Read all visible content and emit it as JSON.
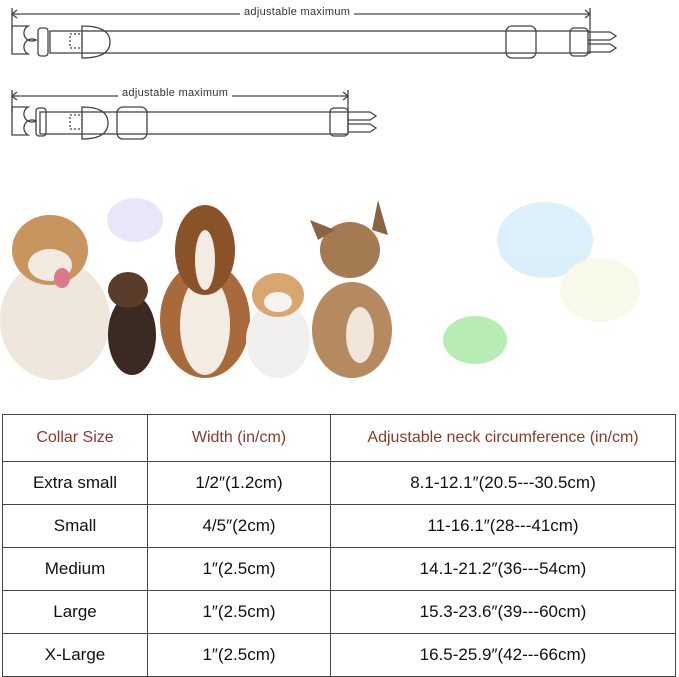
{
  "diagram": {
    "long_collar_label": "adjustable maximum",
    "short_collar_label": "adjustable maximum"
  },
  "colors": {
    "header_text": "#8b3a2a",
    "border": "#444444"
  },
  "size_table": {
    "headers": [
      "Collar Size",
      "Width (in/cm)",
      "Adjustable neck circumference (in/cm)"
    ],
    "rows": [
      [
        "Extra small",
        "1/2″(1.2cm)",
        "8.1-12.1″(20.5---30.5cm)"
      ],
      [
        "Small",
        "4/5″(2cm)",
        "11-16.1″(28---41cm)"
      ],
      [
        "Medium",
        "1″(2.5cm)",
        "14.1-21.2″(36---54cm)"
      ],
      [
        "Large",
        "1″(2.5cm)",
        "15.3-23.6″(39---60cm)"
      ],
      [
        "X-Large",
        "1″(2.5cm)",
        "16.5-25.9″(42---66cm)"
      ]
    ]
  }
}
